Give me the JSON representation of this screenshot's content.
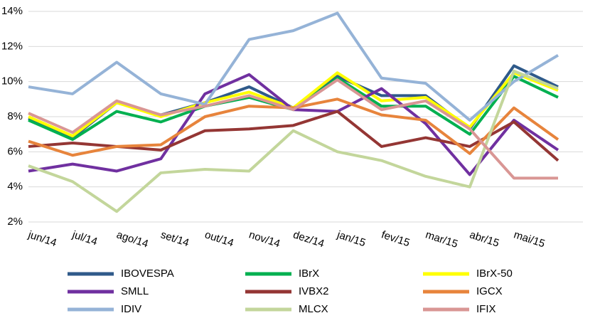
{
  "chart_data": {
    "type": "line",
    "categories": [
      null,
      "jun/14",
      "jul/14",
      "ago/14",
      "set/14",
      "out/14",
      "nov/14",
      "dez/14",
      "jan/15",
      "fev/15",
      "mar/15",
      "abr/15",
      "mai/15"
    ],
    "ylim": [
      2,
      14
    ],
    "yticks": [
      {
        "value": 2,
        "label": "2%"
      },
      {
        "value": 4,
        "label": "4%"
      },
      {
        "value": 6,
        "label": "6%"
      },
      {
        "value": 8,
        "label": "8%"
      },
      {
        "value": 10,
        "label": "10%"
      },
      {
        "value": 12,
        "label": "12%"
      },
      {
        "value": 14,
        "label": "14%"
      }
    ],
    "grid": true,
    "series": [
      {
        "name": "IBOVESPA",
        "color": "#2f5a8a",
        "values": [
          7.9,
          6.8,
          8.8,
          8.1,
          8.8,
          9.7,
          8.5,
          10.3,
          9.2,
          9.2,
          7.3,
          10.9,
          9.7
        ]
      },
      {
        "name": "IBrX",
        "color": "#00b050",
        "values": [
          7.8,
          6.7,
          8.3,
          7.7,
          8.6,
          9.1,
          8.4,
          10.2,
          8.6,
          8.6,
          7.0,
          10.3,
          9.1
        ]
      },
      {
        "name": "IBrX-50",
        "color": "#ffff00",
        "values": [
          8.0,
          6.9,
          8.8,
          8.0,
          8.8,
          9.4,
          8.5,
          10.5,
          8.9,
          9.1,
          7.4,
          10.5,
          9.5
        ]
      },
      {
        "name": "SMLL",
        "color": "#7030a0",
        "values": [
          4.9,
          5.3,
          4.9,
          5.6,
          9.3,
          10.4,
          8.4,
          8.3,
          9.6,
          7.6,
          4.7,
          7.8,
          6.1
        ]
      },
      {
        "name": "IVBX2",
        "color": "#943634",
        "values": [
          6.3,
          6.5,
          6.3,
          6.1,
          7.2,
          7.3,
          7.5,
          8.3,
          6.3,
          6.8,
          6.3,
          7.7,
          5.5
        ]
      },
      {
        "name": "IGCX",
        "color": "#e7843c",
        "values": [
          6.6,
          5.8,
          6.3,
          6.4,
          8.0,
          8.6,
          8.5,
          9.0,
          8.1,
          7.8,
          5.9,
          8.5,
          6.7
        ]
      },
      {
        "name": "IDIV",
        "color": "#95b3d7",
        "values": [
          9.7,
          9.3,
          11.1,
          9.3,
          8.7,
          12.4,
          12.9,
          13.9,
          10.2,
          9.9,
          7.8,
          10.0,
          11.5
        ]
      },
      {
        "name": "MLCX",
        "color": "#c3d69b",
        "values": [
          5.2,
          4.3,
          2.6,
          4.8,
          5.0,
          4.9,
          7.2,
          6.0,
          5.5,
          4.6,
          4.0,
          10.6,
          9.6
        ]
      },
      {
        "name": "IFIX",
        "color": "#d99694",
        "values": [
          8.2,
          7.1,
          8.9,
          8.1,
          8.6,
          9.2,
          8.4,
          10.1,
          8.4,
          8.9,
          7.3,
          4.5,
          4.5
        ]
      }
    ]
  }
}
